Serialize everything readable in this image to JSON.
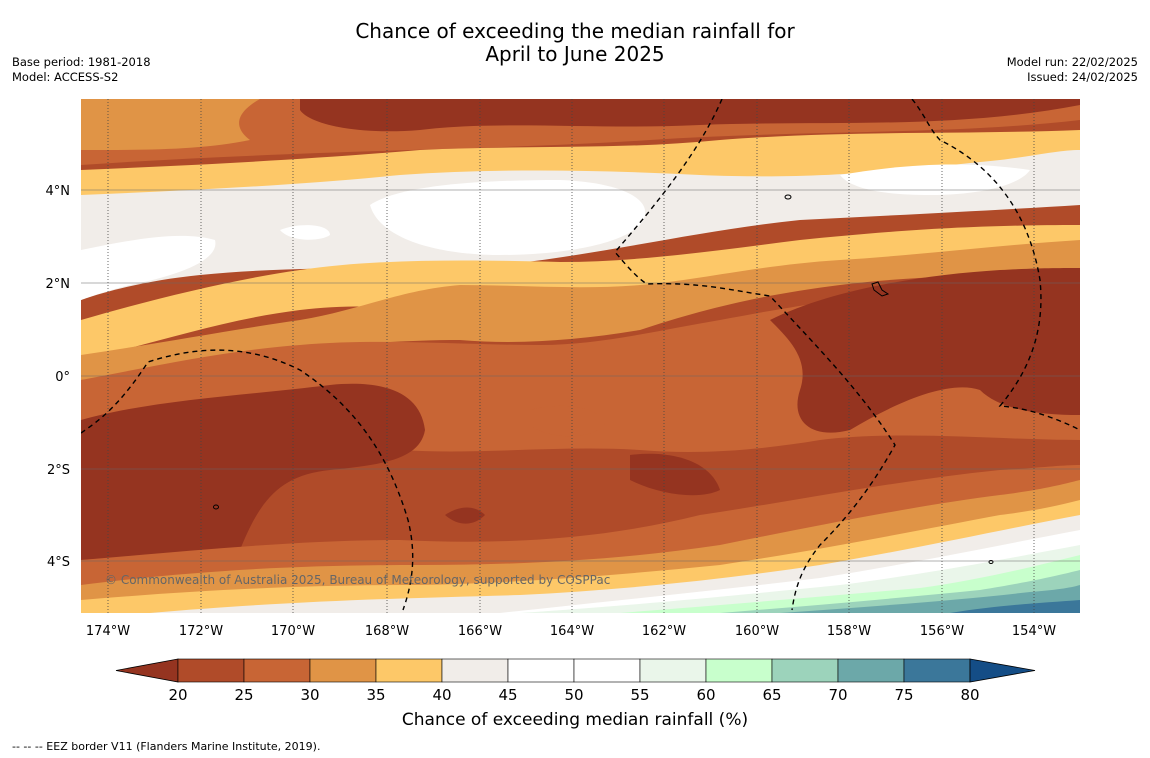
{
  "header": {
    "title_line1": "Chance of exceeding the median rainfall for",
    "title_line2": "April to June 2025",
    "base_period": "Base period: 1981-2018",
    "model": "Model: ACCESS-S2",
    "model_run": "Model run: 22/02/2025",
    "issued": "Issued: 24/02/2025"
  },
  "map": {
    "copyright": "© Commonwealth of Australia 2025, Bureau of Meteorology, supported by COSPPac",
    "lat_labels": [
      "4°N",
      "2°N",
      "0°",
      "2°S",
      "4°S"
    ],
    "lon_labels": [
      "174°W",
      "172°W",
      "170°W",
      "168°W",
      "166°W",
      "164°W",
      "162°W",
      "160°W",
      "158°W",
      "156°W",
      "154°W"
    ],
    "region": {
      "lon_range": [
        "175°W",
        "153°W"
      ],
      "lat_range": [
        "5°S",
        "6°N"
      ]
    }
  },
  "colorbar": {
    "title": "Chance of exceeding median rainfall (%)",
    "ticks": [
      "20",
      "25",
      "30",
      "35",
      "40",
      "45",
      "50",
      "55",
      "60",
      "65",
      "70",
      "75",
      "80"
    ],
    "colors": [
      "#953420",
      "#b04b29",
      "#c86535",
      "#e09446",
      "#fdc868",
      "#f1ede9",
      "#ffffff",
      "#ffffff",
      "#eaf6ea",
      "#c8ffcc",
      "#9cd3bb",
      "#6ca8a9",
      "#3b779a",
      "#144d86"
    ]
  },
  "footer": {
    "legend_note": "--  --  -- EEZ border V11 (Flanders Marine Institute, 2019)."
  }
}
